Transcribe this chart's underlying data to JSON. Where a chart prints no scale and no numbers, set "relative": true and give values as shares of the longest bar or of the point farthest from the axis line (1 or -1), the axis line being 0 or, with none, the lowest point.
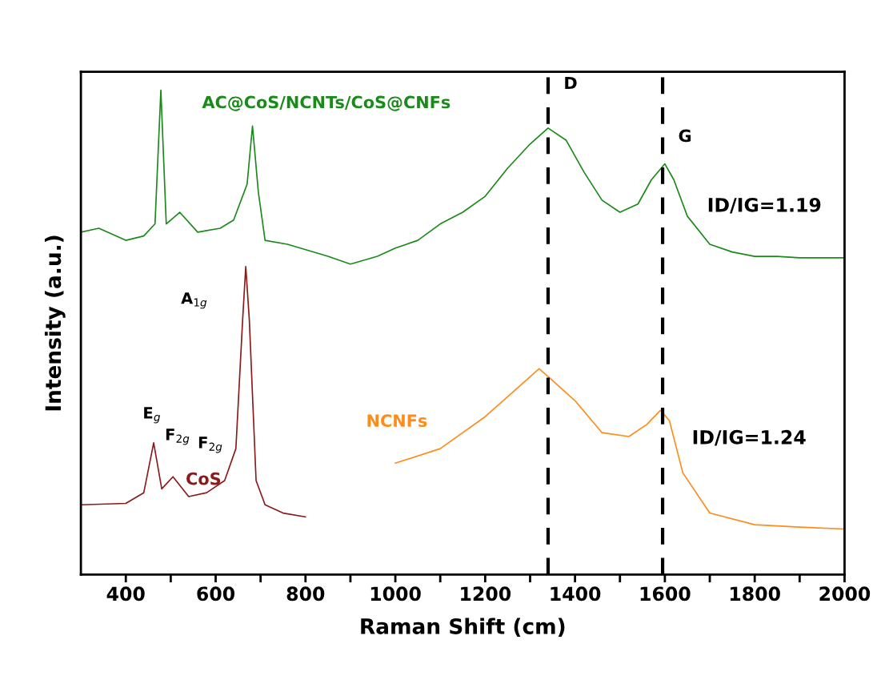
{
  "chart_data": {
    "type": "line",
    "relative": true,
    "xlabel": "Raman Shift (cm)",
    "ylabel": "Intensity (a.u.)",
    "xlim": [
      300,
      2000
    ],
    "xticks": [
      400,
      {
        "value": 500,
        "label": null
      },
      600,
      {
        "value": 700,
        "label": null
      },
      800,
      {
        "value": 900,
        "label": null
      },
      1000,
      {
        "value": 1100,
        "label": null
      },
      1200,
      {
        "value": 1300,
        "label": null
      },
      1400,
      {
        "value": 1500,
        "label": null
      },
      1600,
      {
        "value": 1700,
        "label": null
      },
      1800,
      {
        "value": 1900,
        "label": null
      },
      2000
    ],
    "grid": false,
    "marker": "none",
    "line_style": "solid",
    "series": [
      {
        "name": "AC@CoS/NCNTs/CoS@CNFs",
        "color": "#1a8a1a",
        "x": [
          300,
          340,
          400,
          440,
          465,
          478,
          490,
          520,
          560,
          610,
          640,
          670,
          682,
          695,
          710,
          760,
          850,
          900,
          960,
          1000,
          1050,
          1100,
          1150,
          1200,
          1250,
          1300,
          1340,
          1380,
          1420,
          1460,
          1500,
          1540,
          1570,
          1600,
          1620,
          1650,
          1700,
          1750,
          1800,
          1850,
          1900,
          1950,
          2000
        ],
        "values": [
          0.707,
          0.715,
          0.69,
          0.699,
          0.724,
          1,
          0.724,
          0.748,
          0.707,
          0.715,
          0.732,
          0.806,
          0.926,
          0.79,
          0.69,
          0.682,
          0.657,
          0.641,
          0.657,
          0.674,
          0.69,
          0.724,
          0.748,
          0.781,
          0.839,
          0.889,
          0.922,
          0.897,
          0.831,
          0.773,
          0.748,
          0.765,
          0.815,
          0.848,
          0.815,
          0.74,
          0.682,
          0.666,
          0.657,
          0.657,
          0.654,
          0.654,
          0.654
        ]
      },
      {
        "name": "CoS",
        "color": "#8b1a1a",
        "x": [
          300,
          400,
          440,
          462,
          480,
          505,
          540,
          580,
          620,
          645,
          660,
          667,
          675,
          690,
          710,
          750,
          800
        ],
        "values": [
          0.144,
          0.147,
          0.169,
          0.272,
          0.177,
          0.202,
          0.161,
          0.169,
          0.194,
          0.26,
          0.525,
          0.636,
          0.525,
          0.194,
          0.144,
          0.127,
          0.119
        ]
      },
      {
        "name": "NCNFs",
        "color": "#ff8c1a",
        "x": [
          1000,
          1100,
          1200,
          1280,
          1320,
          1340,
          1400,
          1460,
          1520,
          1560,
          1590,
          1610,
          1640,
          1700,
          1800,
          1900,
          2000
        ],
        "values": [
          0.23,
          0.26,
          0.326,
          0.392,
          0.425,
          0.409,
          0.359,
          0.293,
          0.285,
          0.31,
          0.339,
          0.318,
          0.21,
          0.127,
          0.103,
          0.098,
          0.094
        ]
      }
    ],
    "ref_lines": [
      {
        "axis": "x",
        "value": 1340,
        "label": "D",
        "color": "#000000",
        "line_style": "dashed"
      },
      {
        "axis": "x",
        "value": 1595,
        "label": "G",
        "color": "#000000",
        "line_style": "dashed"
      }
    ],
    "annotations": [
      "ID/IG=1.19",
      "ID/IG=1.24",
      "A$_{1g}$",
      "E$_{g}$",
      "F$_{2g}$",
      "F$_{2g}$"
    ]
  }
}
